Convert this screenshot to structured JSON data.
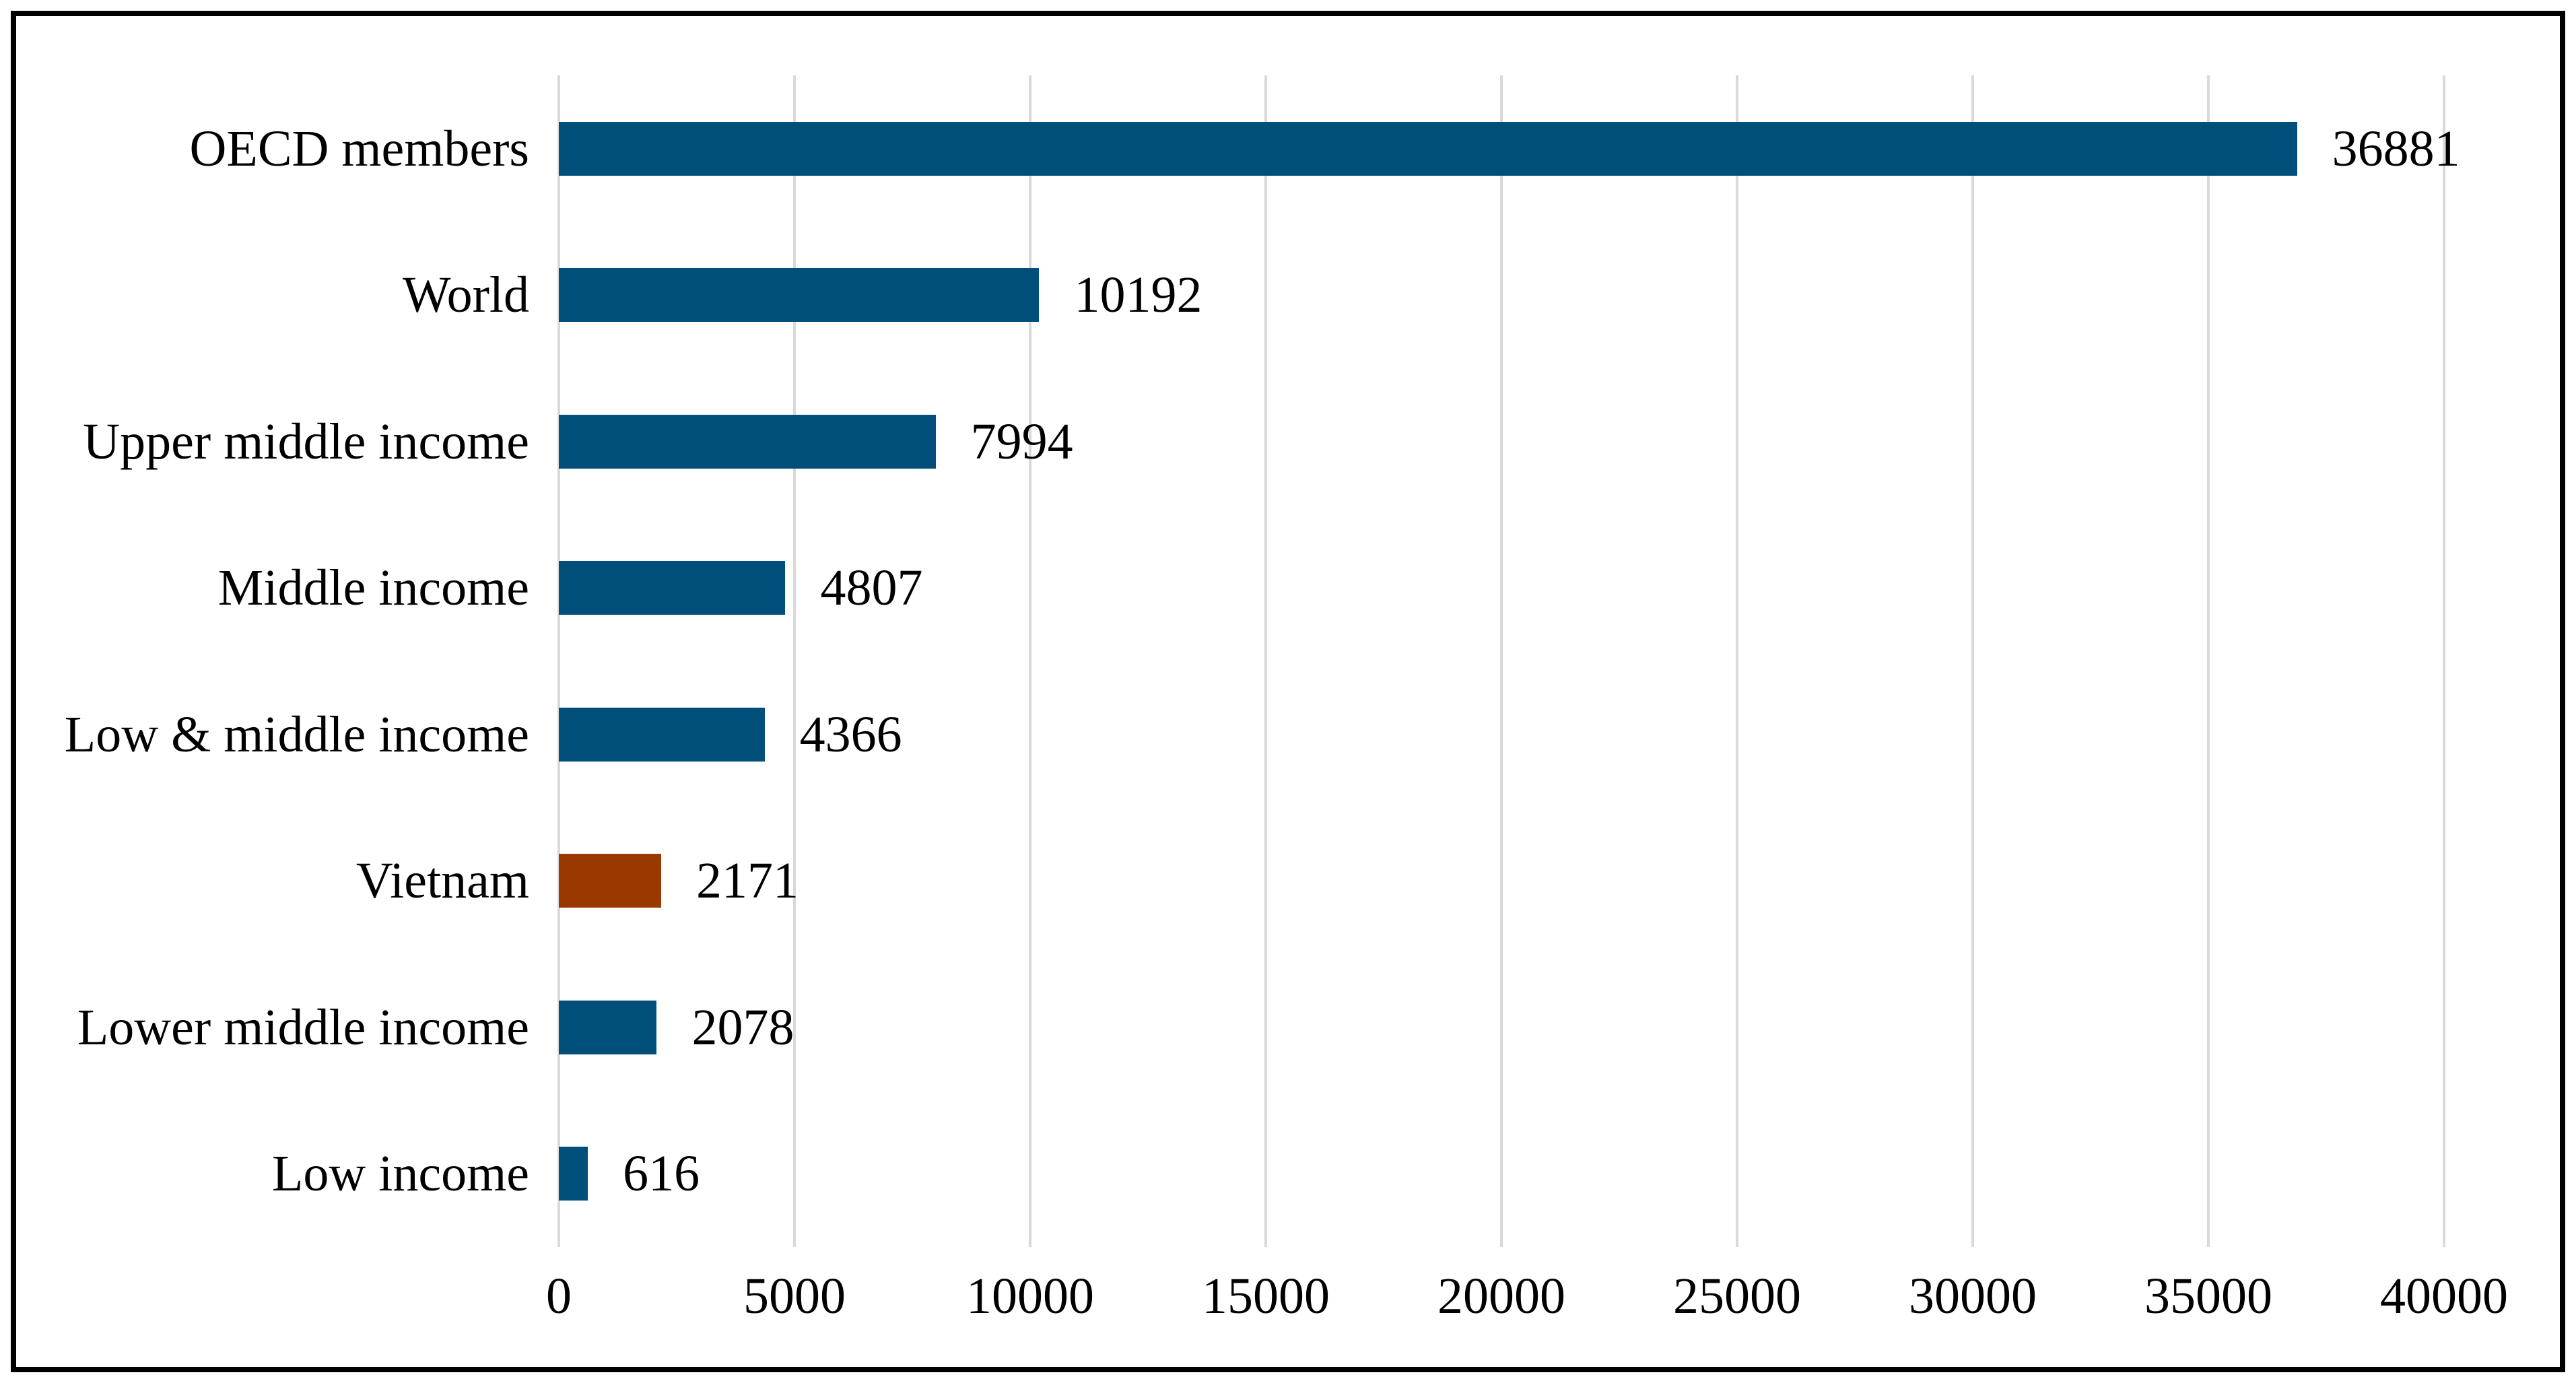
{
  "chart_data": {
    "type": "bar",
    "orientation": "horizontal",
    "title": "",
    "xlabel": "",
    "ylabel": "",
    "categories": [
      "OECD members",
      "World",
      "Upper middle income",
      "Middle income",
      "Low & middle income",
      "Vietnam",
      "Lower middle income",
      "Low income"
    ],
    "values": [
      36881,
      10192,
      7994,
      4807,
      4366,
      2171,
      2078,
      616
    ],
    "bar_colors": [
      "#004F7B",
      "#004F7B",
      "#004F7B",
      "#004F7B",
      "#004F7B",
      "#993900",
      "#004F7B",
      "#004F7B"
    ],
    "default_bar_color": "#004F7B",
    "highlight_category": "Vietnam",
    "highlight_color": "#993900",
    "x_ticks": [
      0,
      5000,
      10000,
      15000,
      20000,
      25000,
      30000,
      35000,
      40000
    ],
    "xlim": [
      0,
      40000
    ],
    "grid": "vertical",
    "gridline_color": "#D9D9D9",
    "frame_border_color": "#000000",
    "background_color": "#FFFFFF",
    "legend_position": "none",
    "data_label_position": "outside-end"
  }
}
